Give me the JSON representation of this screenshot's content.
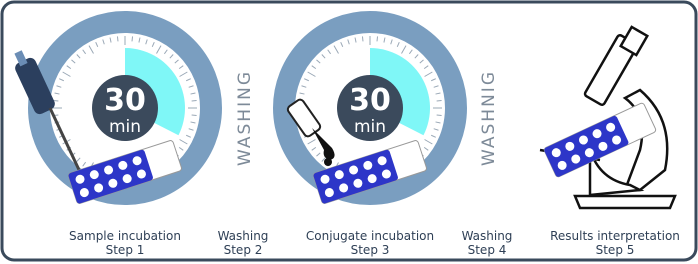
{
  "timers": [
    {
      "value": "30",
      "unit": "min"
    },
    {
      "value": "30",
      "unit": "min"
    }
  ],
  "washing_labels": [
    "WASHING",
    "WASHNIG"
  ],
  "steps": [
    {
      "label": "Sample incubation",
      "step": "Step 1"
    },
    {
      "label": "Washing",
      "step": "Step 2"
    },
    {
      "label": "Conjugate incubation",
      "step": "Step 3"
    },
    {
      "label": "Washing",
      "step": "Step 4"
    },
    {
      "label": "Results interpretation",
      "step": "Step 5"
    }
  ]
}
